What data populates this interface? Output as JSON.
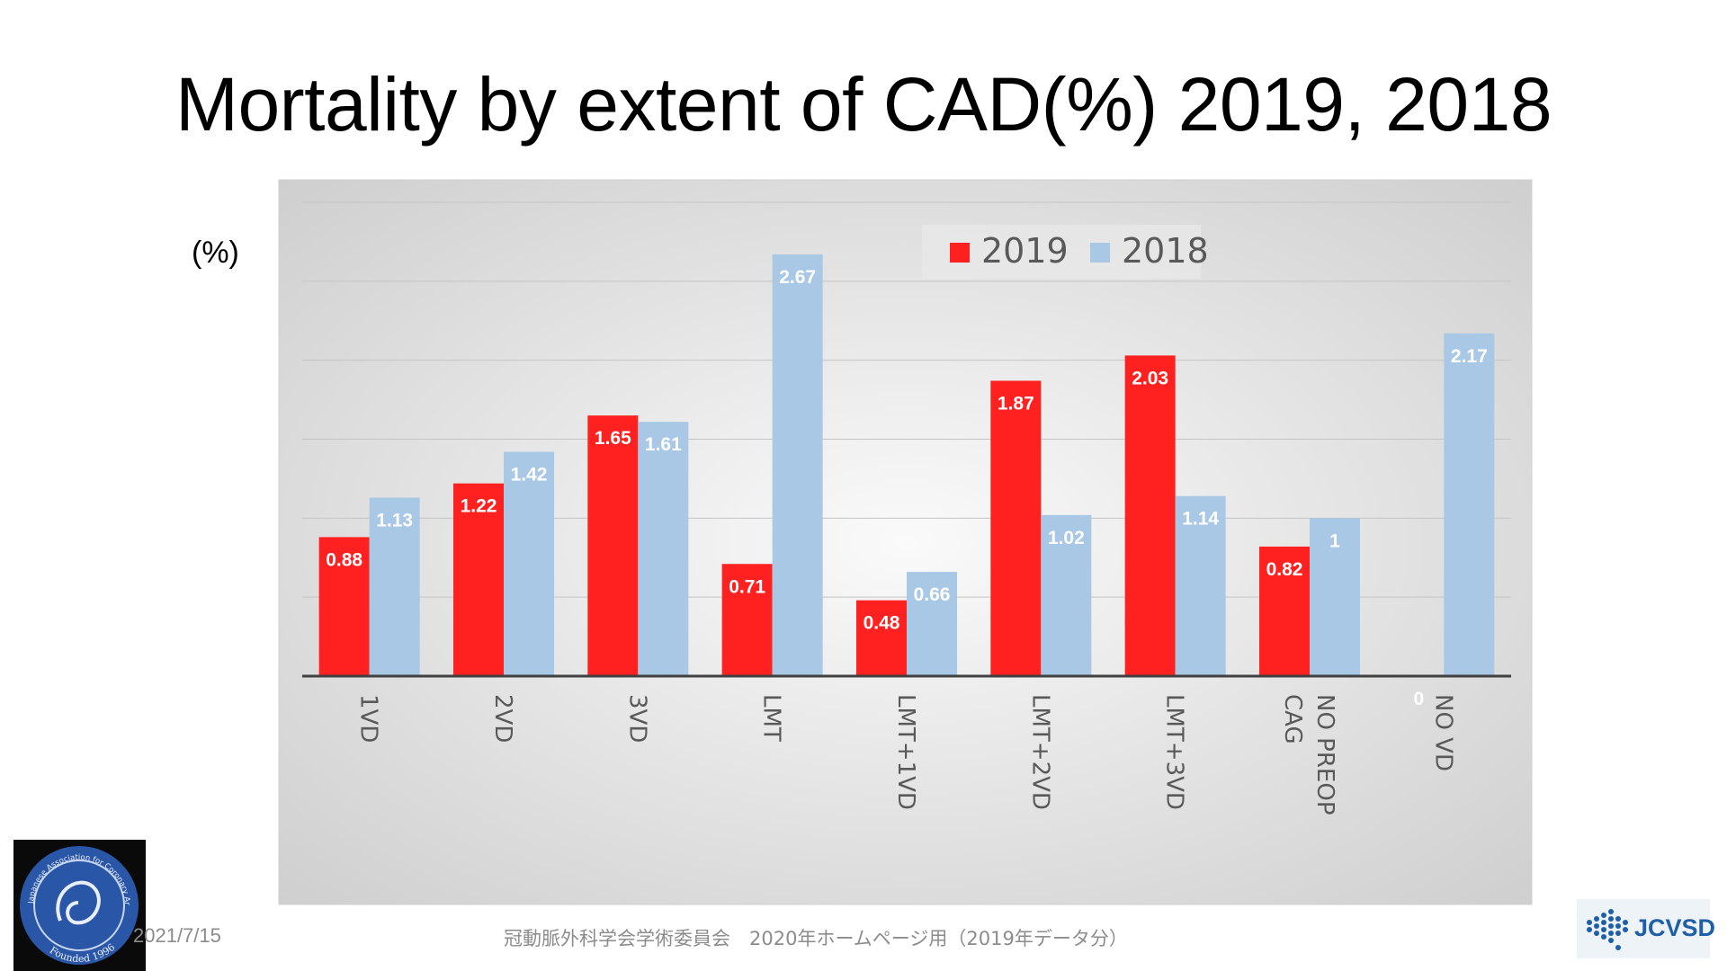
{
  "title": "Mortality by extent of CAD(%) 2019, 2018",
  "unit_label": "(%)",
  "chart_data": {
    "type": "bar",
    "title": "",
    "ylabel": "(%)",
    "xlabel": "",
    "ylim": [
      0,
      3
    ],
    "grid": true,
    "legend_position": "top-right",
    "categories": [
      "1VD",
      "2VD",
      "3VD",
      "LMT",
      "LMT+1VD",
      "LMT+2VD",
      "LMT+3VD",
      "NO PREOP CAG",
      "NO VD"
    ],
    "category_lines": [
      [
        "1VD"
      ],
      [
        "2VD"
      ],
      [
        "3VD"
      ],
      [
        "LMT"
      ],
      [
        "LMT+1VD"
      ],
      [
        "LMT+2VD"
      ],
      [
        "LMT+3VD"
      ],
      [
        "NO PREOP",
        "CAG"
      ],
      [
        "NO VD"
      ]
    ],
    "series": [
      {
        "name": "2019",
        "color": "#ff2020",
        "values": [
          0.88,
          1.22,
          1.65,
          0.71,
          0.48,
          1.87,
          2.03,
          0.82,
          0
        ]
      },
      {
        "name": "2018",
        "color": "#a9c8e6",
        "values": [
          1.13,
          1.42,
          1.61,
          2.67,
          0.66,
          1.02,
          1.14,
          1,
          2.17
        ]
      }
    ],
    "data_labels": [
      [
        "0.88",
        "1.22",
        "1.65",
        "0.71",
        "0.48",
        "1.87",
        "2.03",
        "0.82",
        "0"
      ],
      [
        "1.13",
        "1.42",
        "1.61",
        "2.67",
        "0.66",
        "1.02",
        "1.14",
        "1",
        "2.17"
      ]
    ]
  },
  "footer": {
    "date": "2021/7/15",
    "center_text": "冠動脈外科学会学術委員会　2020年ホームページ用（2019年データ分）"
  },
  "logos": {
    "left_text": "Japanese Association for Coronary Artery Surgery",
    "left_founded": "Founded 1996",
    "right_text": "JCVSD"
  }
}
